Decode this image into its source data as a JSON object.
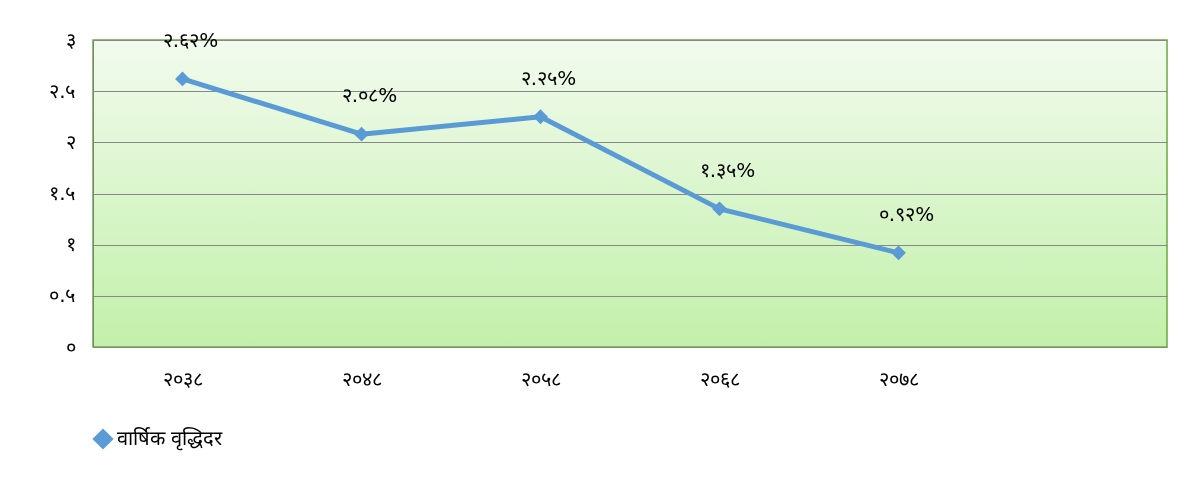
{
  "chart_data": {
    "type": "line",
    "categories": [
      "२०३८",
      "२०४८",
      "२०५८",
      "२०६८",
      "२०७८",
      null
    ],
    "series": [
      {
        "name": "वार्षिक वृद्धिदर",
        "color": "#5b9bd5",
        "values": [
          2.62,
          2.08,
          2.25,
          1.35,
          0.92,
          null
        ],
        "value_labels": [
          "२.६२%",
          "२.०८%",
          "२.२५%",
          "१.३५%",
          "०.९२%",
          null
        ]
      }
    ],
    "ylim": [
      0,
      3
    ],
    "yticks": [
      {
        "value": 0,
        "label": "०"
      },
      {
        "value": 0.5,
        "label": "०.५"
      },
      {
        "value": 1,
        "label": "१"
      },
      {
        "value": 1.5,
        "label": "१.५"
      },
      {
        "value": 2,
        "label": "२"
      },
      {
        "value": 2.5,
        "label": "२.५"
      },
      {
        "value": 3,
        "label": "३"
      }
    ],
    "grid": "y",
    "legend": "bottom",
    "marker": "diamond",
    "line_style": "solid"
  }
}
